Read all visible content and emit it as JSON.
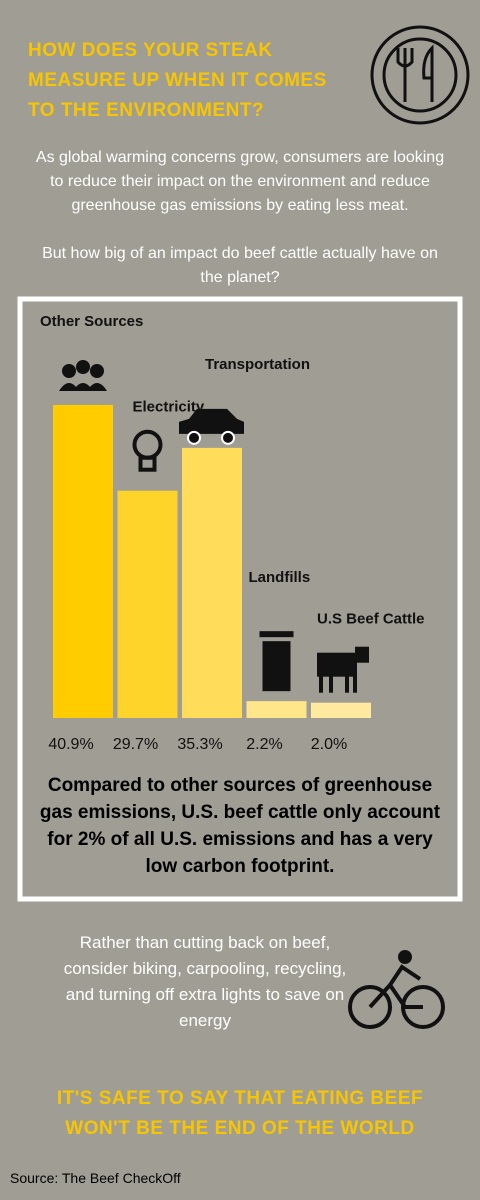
{
  "header": {
    "title": "HOW DOES YOUR STEAK MEASURE UP WHEN IT COMES TO THE ENVIRONMENT?"
  },
  "intro": [
    "As global warming concerns grow, consumers are looking to reduce their impact on the environment and reduce greenhouse gas emissions by eating less meat.",
    "But how big of an impact do beef cattle actually have on the planet?"
  ],
  "chart_data": {
    "type": "bar",
    "categories": [
      "Other Sources",
      "Electricity",
      "Transportation",
      "Landfills",
      "U.S Beef Cattle"
    ],
    "values": [
      40.9,
      29.7,
      35.3,
      2.2,
      2.0
    ],
    "value_labels": [
      "40.9%",
      "29.7%",
      "35.3%",
      "2.2%",
      "2.0%"
    ],
    "colors": [
      "#ffcc00",
      "#ffd42a",
      "#ffdc5a",
      "#ffe68a",
      "#ffeaa0"
    ],
    "caption": "Compared to other sources of greenhouse gas emissions, U.S. beef cattle only account for 2% of all U.S. emissions and has a very low carbon footprint."
  },
  "tip": "Rather than cutting back on beef, consider biking, carpooling, recycling, and turning off extra lights to save on energy",
  "conclusion": "IT'S SAFE TO SAY THAT EATING BEEF WON'T BE THE END OF THE WORLD",
  "source": "Source: The Beef CheckOff"
}
